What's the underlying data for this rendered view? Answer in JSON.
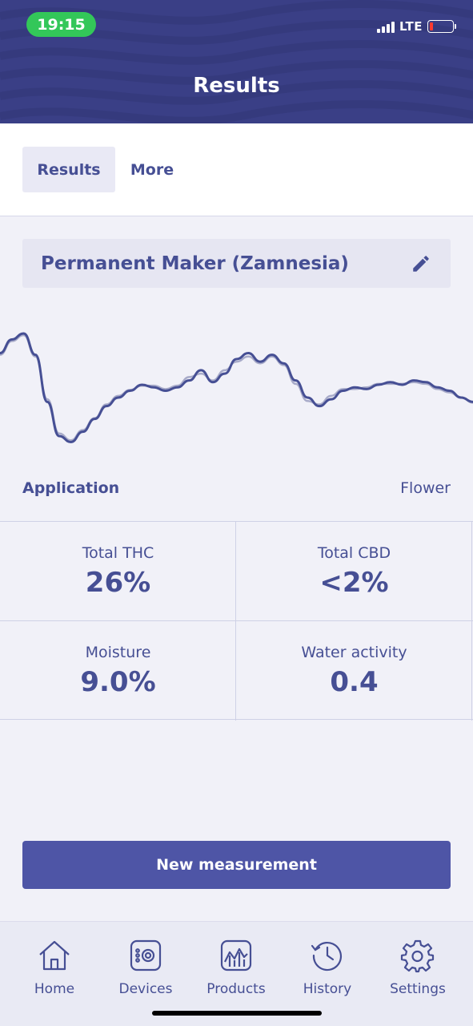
{
  "status_bar": {
    "time": "19:15",
    "network": "LTE"
  },
  "header": {
    "title": "Results"
  },
  "tabs": [
    {
      "label": "Results",
      "active": true
    },
    {
      "label": "More",
      "active": false
    }
  ],
  "product": {
    "name": "Permanent Maker (Zamnesia)",
    "edit_icon": "pencil-icon"
  },
  "chart_data": {
    "type": "line",
    "title": "",
    "xlabel": "",
    "ylabel": "",
    "grid": false,
    "legend": "none",
    "x": [
      0,
      1,
      2,
      3,
      4,
      5,
      6,
      7,
      8,
      9,
      10,
      11,
      12,
      13,
      14,
      15,
      16,
      17,
      18,
      19,
      20,
      21,
      22,
      23,
      24,
      25,
      26,
      27,
      28,
      29,
      30,
      31,
      32,
      33,
      34,
      35,
      36,
      37,
      38,
      39,
      40
    ],
    "series": [
      {
        "color": "#464f94",
        "values": [
          0.62,
          0.78,
          0.85,
          0.6,
          0.05,
          -0.35,
          -0.42,
          -0.3,
          -0.15,
          0.0,
          0.1,
          0.18,
          0.25,
          0.22,
          0.18,
          0.22,
          0.3,
          0.42,
          0.28,
          0.38,
          0.55,
          0.62,
          0.52,
          0.6,
          0.5,
          0.3,
          0.1,
          0.0,
          0.08,
          0.18,
          0.22,
          0.2,
          0.25,
          0.28,
          0.25,
          0.3,
          0.28,
          0.22,
          0.18,
          0.1,
          0.05
        ]
      },
      {
        "color": "#a8abc9",
        "values": [
          0.6,
          0.76,
          0.83,
          0.58,
          0.08,
          -0.32,
          -0.4,
          -0.28,
          -0.14,
          0.02,
          0.12,
          0.19,
          0.24,
          0.24,
          0.2,
          0.24,
          0.34,
          0.38,
          0.3,
          0.42,
          0.52,
          0.58,
          0.5,
          0.58,
          0.48,
          0.26,
          0.06,
          0.02,
          0.12,
          0.2,
          0.2,
          0.22,
          0.26,
          0.26,
          0.26,
          0.28,
          0.26,
          0.2,
          0.16,
          0.1,
          0.04
        ]
      }
    ]
  },
  "application": {
    "label": "Application",
    "value": "Flower"
  },
  "stats": [
    {
      "label": "Total THC",
      "value": "26%"
    },
    {
      "label": "Total CBD",
      "value": "<2%"
    },
    {
      "label": "Moisture",
      "value": "9.0%"
    },
    {
      "label": "Water activity",
      "value": "0.4"
    }
  ],
  "actions": {
    "new_measurement": "New measurement"
  },
  "nav": [
    {
      "label": "Home",
      "icon": "home-icon"
    },
    {
      "label": "Devices",
      "icon": "device-icon"
    },
    {
      "label": "Products",
      "icon": "products-chart-icon"
    },
    {
      "label": "History",
      "icon": "history-icon"
    },
    {
      "label": "Settings",
      "icon": "gear-icon"
    }
  ]
}
